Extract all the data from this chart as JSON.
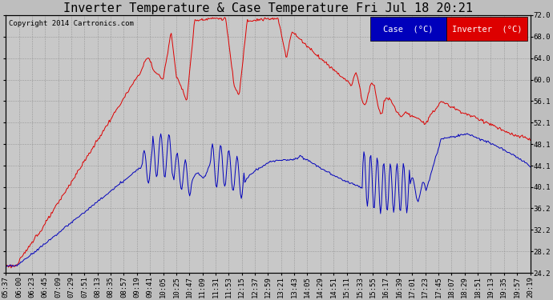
{
  "title": "Inverter Temperature & Case Temperature Fri Jul 18 20:21",
  "copyright": "Copyright 2014 Cartronics.com",
  "ylim": [
    24.2,
    72.0
  ],
  "yticks": [
    24.2,
    28.2,
    32.2,
    36.2,
    40.1,
    44.1,
    48.1,
    52.1,
    56.1,
    60.0,
    64.0,
    68.0,
    72.0
  ],
  "bg_color": "#bebebe",
  "plot_bg": "#c8c8c8",
  "grid_color": "#999999",
  "red_color": "#dd0000",
  "blue_color": "#0000bb",
  "xtick_labels": [
    "05:37",
    "06:00",
    "06:23",
    "06:45",
    "07:09",
    "07:29",
    "07:51",
    "08:13",
    "08:35",
    "08:57",
    "09:19",
    "09:41",
    "10:05",
    "10:25",
    "10:47",
    "11:09",
    "11:31",
    "11:53",
    "12:15",
    "12:37",
    "12:59",
    "13:21",
    "13:43",
    "14:05",
    "14:29",
    "14:51",
    "15:11",
    "15:33",
    "15:55",
    "16:17",
    "16:39",
    "17:01",
    "17:23",
    "17:45",
    "18:07",
    "18:29",
    "18:51",
    "19:13",
    "19:35",
    "19:57",
    "20:19"
  ],
  "title_fontsize": 11,
  "copyright_fontsize": 6.5,
  "tick_fontsize": 6.5,
  "legend_fontsize": 7.5
}
